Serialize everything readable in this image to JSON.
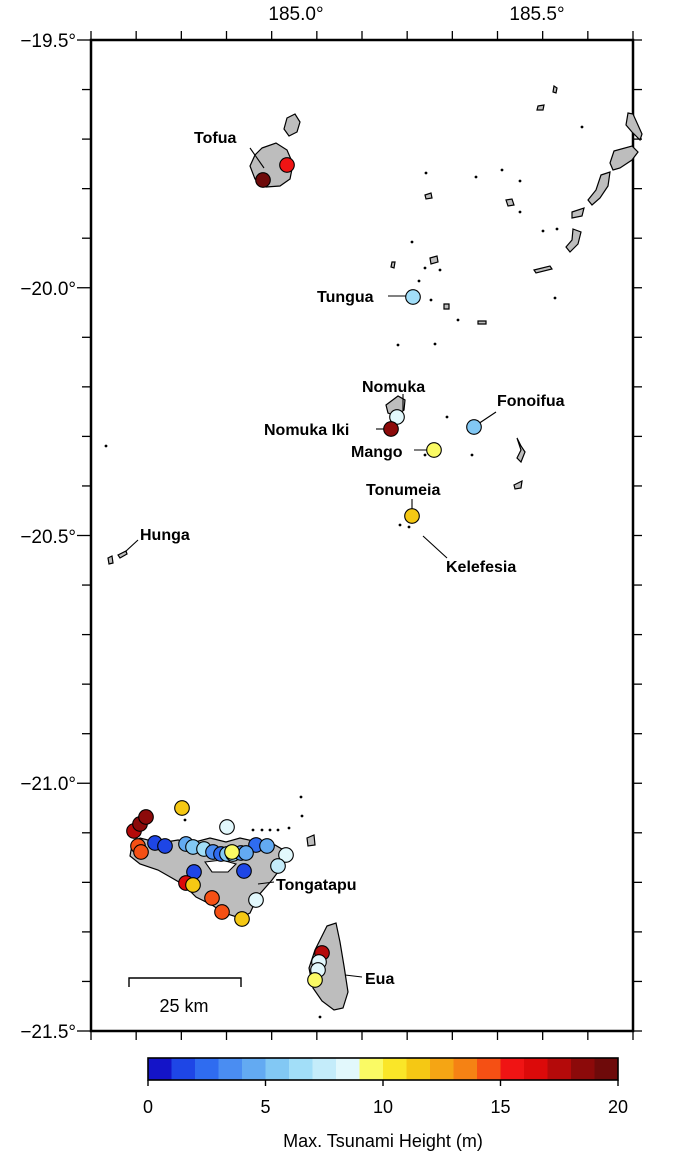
{
  "map": {
    "x_ticks": [
      {
        "value": 185.0,
        "label": "185.0°"
      },
      {
        "value": 185.5,
        "label": "185.5°"
      }
    ],
    "y_ticks": [
      {
        "value": -19.5,
        "label": "−19.5°"
      },
      {
        "value": -20.0,
        "label": "−20.0°"
      },
      {
        "value": -20.5,
        "label": "−20.5°"
      },
      {
        "value": -21.0,
        "label": "−21.0°"
      },
      {
        "value": -21.5,
        "label": "−21.5°"
      }
    ],
    "x_range": [
      184.6,
      185.8
    ],
    "y_range": [
      -21.5,
      -19.5
    ],
    "land_color": "#bdbdbd",
    "place_labels": [
      {
        "key": "tofua",
        "text": "Tofua"
      },
      {
        "key": "tungua",
        "text": "Tungua"
      },
      {
        "key": "nomuka",
        "text": "Nomuka"
      },
      {
        "key": "nomuka_iki",
        "text": "Nomuka Iki"
      },
      {
        "key": "mango",
        "text": "Mango"
      },
      {
        "key": "fonoifua",
        "text": "Fonoifua"
      },
      {
        "key": "tonumeia",
        "text": "Tonumeia"
      },
      {
        "key": "kelefesia",
        "text": "Kelefesia"
      },
      {
        "key": "hunga",
        "text": "Hunga"
      },
      {
        "key": "tongatapu",
        "text": "Tongatapu"
      },
      {
        "key": "eua",
        "text": "Eua"
      }
    ],
    "scale_bar": {
      "label": "25 km"
    }
  },
  "tsunami_sites": [
    {
      "name": "Tofua",
      "height": 20
    },
    {
      "name": "Tofua",
      "height": 15.5
    },
    {
      "name": "Tungua",
      "height": 6
    },
    {
      "name": "Nomuka",
      "height": 8.5
    },
    {
      "name": "Nomuka Iki",
      "height": 18
    },
    {
      "name": "Mango",
      "height": 9.5
    },
    {
      "name": "Fonoifua",
      "height": 5
    },
    {
      "name": "Tonumeia",
      "height": 11
    },
    {
      "name": "Tongatapu",
      "height": 17.5
    },
    {
      "name": "Tongatapu",
      "height": 18
    },
    {
      "name": "Tongatapu",
      "height": 18.5
    },
    {
      "name": "Tongatapu",
      "height": 14
    },
    {
      "name": "Tongatapu",
      "height": 14.5
    },
    {
      "name": "Tongatapu",
      "height": 11.5
    },
    {
      "name": "Tongatapu",
      "height": 8
    },
    {
      "name": "Tongatapu",
      "height": 1
    },
    {
      "name": "Tongatapu",
      "height": 1.5
    },
    {
      "name": "Tongatapu",
      "height": 4
    },
    {
      "name": "Tongatapu",
      "height": 5
    },
    {
      "name": "Tongatapu",
      "height": 6
    },
    {
      "name": "Tongatapu",
      "height": 3
    },
    {
      "name": "Tongatapu",
      "height": 2
    },
    {
      "name": "Tongatapu",
      "height": 5.5
    },
    {
      "name": "Tongatapu",
      "height": 6.5
    },
    {
      "name": "Tongatapu",
      "height": 3.5
    },
    {
      "name": "Tongatapu",
      "height": 2.5
    },
    {
      "name": "Tongatapu",
      "height": 4.5
    },
    {
      "name": "Tongatapu",
      "height": 8.5
    },
    {
      "name": "Tongatapu",
      "height": 1
    },
    {
      "name": "Tongatapu",
      "height": 1.5
    },
    {
      "name": "Tongatapu",
      "height": 16
    },
    {
      "name": "Tongatapu",
      "height": 11
    },
    {
      "name": "Tongatapu",
      "height": 14
    },
    {
      "name": "Tongatapu",
      "height": 14.5
    },
    {
      "name": "Tongatapu",
      "height": 11
    },
    {
      "name": "Tongatapu",
      "height": 8
    },
    {
      "name": "Tongatapu",
      "height": 7
    },
    {
      "name": "Tongatapu",
      "height": 4
    },
    {
      "name": "Tongatapu",
      "height": 9
    },
    {
      "name": "Eua",
      "height": 17
    },
    {
      "name": "Eua",
      "height": 8
    },
    {
      "name": "Eua",
      "height": 8.5
    },
    {
      "name": "Eua",
      "height": 9
    }
  ],
  "colorbar": {
    "colors": [
      "#1414c8",
      "#1e46e6",
      "#2f6cf0",
      "#4a8df2",
      "#63aaf2",
      "#82c8f4",
      "#a2def8",
      "#c4ecfa",
      "#e2f8fc",
      "#fafa64",
      "#fae628",
      "#f5c814",
      "#f5a514",
      "#f58214",
      "#f55014",
      "#f01414",
      "#dc0a0a",
      "#b40a0a",
      "#8c0a0a",
      "#6e0a0a"
    ],
    "ticks": [
      {
        "value": 0,
        "label": "0"
      },
      {
        "value": 5,
        "label": "5"
      },
      {
        "value": 10,
        "label": "10"
      },
      {
        "value": 15,
        "label": "15"
      },
      {
        "value": 20,
        "label": "20"
      }
    ],
    "title": "Max. Tsunami Height (m)"
  }
}
